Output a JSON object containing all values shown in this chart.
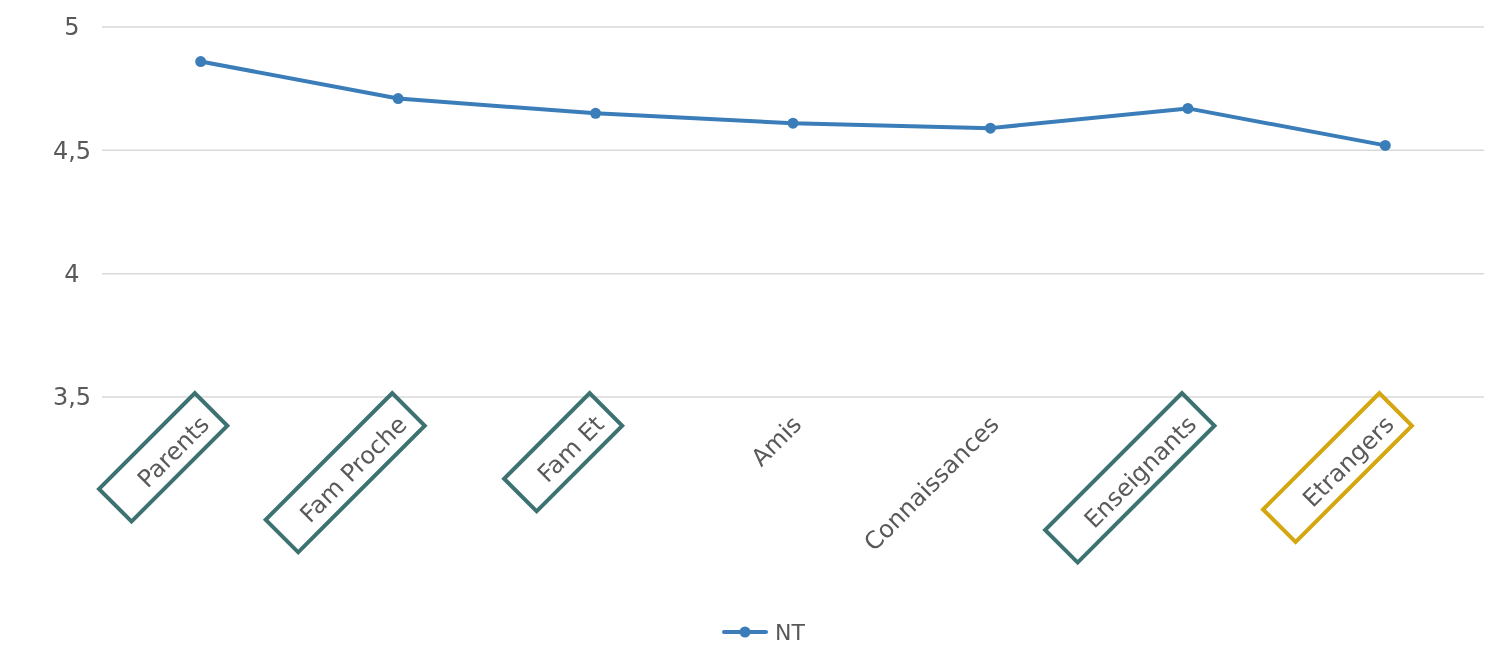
{
  "chart_data": {
    "type": "line",
    "categories": [
      "Parents",
      "Fam Proche",
      "Fam Et",
      "Amis",
      "Connaissances",
      "Enseignants",
      "Etrangers"
    ],
    "series": [
      {
        "name": "NT",
        "color": "#3a7db8",
        "values": [
          4.86,
          4.71,
          4.65,
          4.61,
          4.59,
          4.67,
          4.52
        ]
      }
    ],
    "ylim": [
      3.5,
      5
    ],
    "yticks": [
      {
        "value": 3.5,
        "label": "3,5"
      },
      {
        "value": 4,
        "label": "4"
      },
      {
        "value": 4.5,
        "label": "4,5"
      },
      {
        "value": 5,
        "label": "5"
      }
    ],
    "grid": "y",
    "legend": "bottom",
    "marker": "circle",
    "line_style": "solid"
  }
}
